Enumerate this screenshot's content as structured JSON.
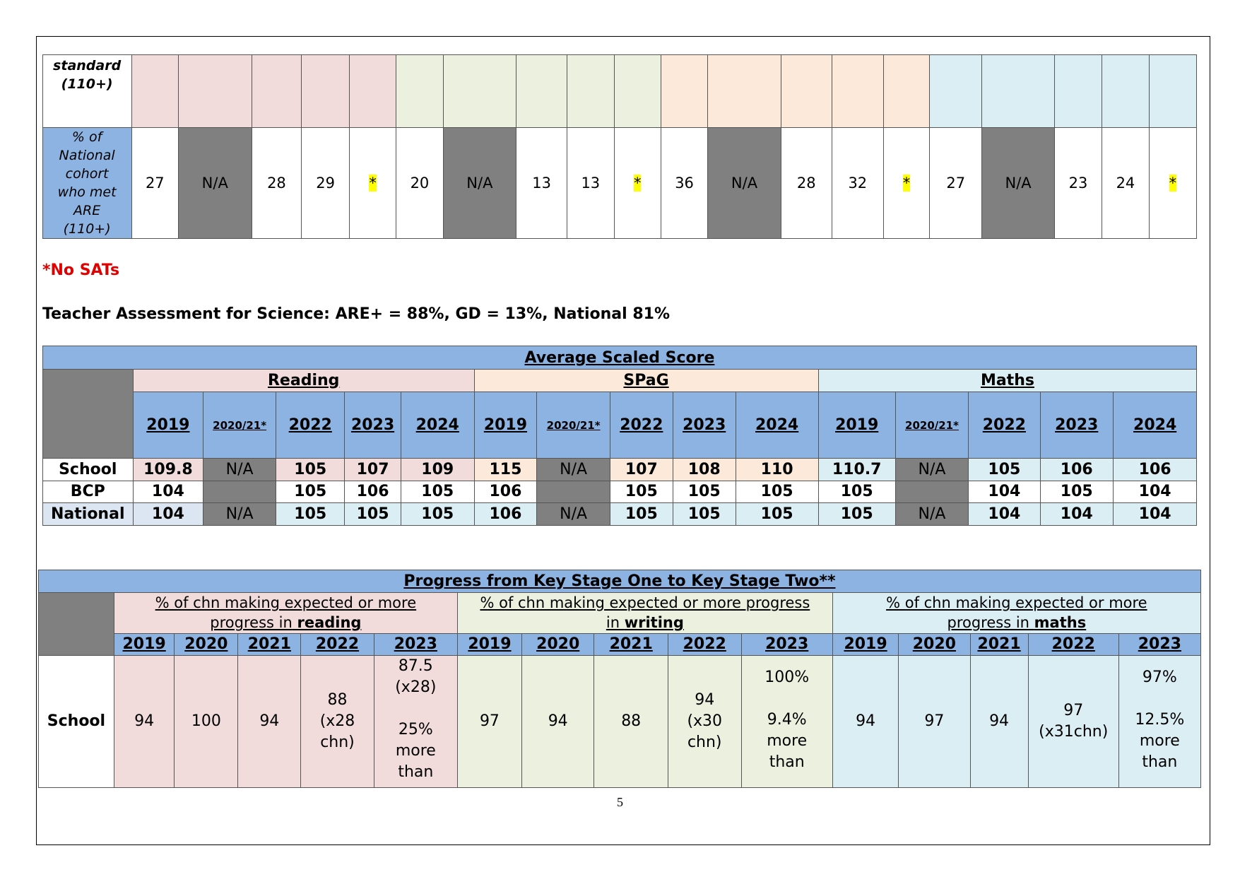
{
  "table1": {
    "row_labels": [
      "standard (110+)",
      "% of National cohort who met ARE (110+)"
    ],
    "values": [
      27,
      "N/A",
      28,
      29,
      "*",
      20,
      "N/A",
      13,
      13,
      "*",
      36,
      "N/A",
      28,
      32,
      "*",
      27,
      "N/A",
      23,
      24,
      "*"
    ]
  },
  "notes": {
    "no_sats": "*No SATs",
    "science": "Teacher Assessment for Science: ARE+ = 88%, GD = 13%, National 81%"
  },
  "table2": {
    "title": "Average Scaled Score",
    "subjects": [
      "Reading",
      "SPaG",
      "Maths"
    ],
    "years": [
      "2019",
      "2020/21*",
      "2022",
      "2023",
      "2024",
      "2019",
      "2020/21*",
      "2022",
      "2023",
      "2024",
      "2019",
      "2020/21*",
      "2022",
      "2023",
      "2024"
    ],
    "rows": [
      {
        "label": "School",
        "cells": [
          109.8,
          "N/A",
          105,
          107,
          109,
          115,
          "N/A",
          107,
          108,
          110,
          110.7,
          "N/A",
          105,
          106,
          106
        ]
      },
      {
        "label": "BCP",
        "cells": [
          104,
          null,
          105,
          106,
          105,
          106,
          null,
          105,
          105,
          105,
          105,
          null,
          104,
          105,
          104
        ]
      },
      {
        "label": "National",
        "cells": [
          104,
          "N/A",
          105,
          105,
          105,
          106,
          "N/A",
          105,
          105,
          105,
          105,
          "N/A",
          104,
          104,
          104
        ]
      }
    ]
  },
  "table3": {
    "title": "Progress from Key Stage One to Key Stage Two**",
    "subjects": [
      {
        "text": "% of chn making expected or more progress in",
        "emphasis": "reading"
      },
      {
        "text": "% of chn making  expected or more progress in",
        "emphasis": "writing"
      },
      {
        "text": "% of chn making  expected or more progress in",
        "emphasis": "maths"
      }
    ],
    "years": [
      "2019",
      "2020",
      "2021",
      "2022",
      "2023",
      "2019",
      "2020",
      "2021",
      "2022",
      "2023",
      "2019",
      "2020",
      "2021",
      "2022",
      "2023"
    ],
    "row": {
      "label": "School",
      "cells": [
        94,
        100,
        94,
        [
          [
            "88",
            "(x28",
            "chn)"
          ]
        ],
        [
          [
            "87.5",
            "(x28)"
          ],
          [
            "25%",
            "more",
            "than"
          ]
        ],
        97,
        94,
        88,
        [
          [
            "94",
            "(x30",
            "chn)"
          ]
        ],
        [
          [
            "100%"
          ],
          [
            "9.4%",
            "more",
            "than"
          ]
        ],
        94,
        97,
        94,
        [
          [
            "97",
            "(x31chn)"
          ]
        ],
        [
          [
            "97%"
          ],
          [
            "12.5%",
            "more",
            "than"
          ]
        ]
      ]
    }
  },
  "page_number": "5"
}
